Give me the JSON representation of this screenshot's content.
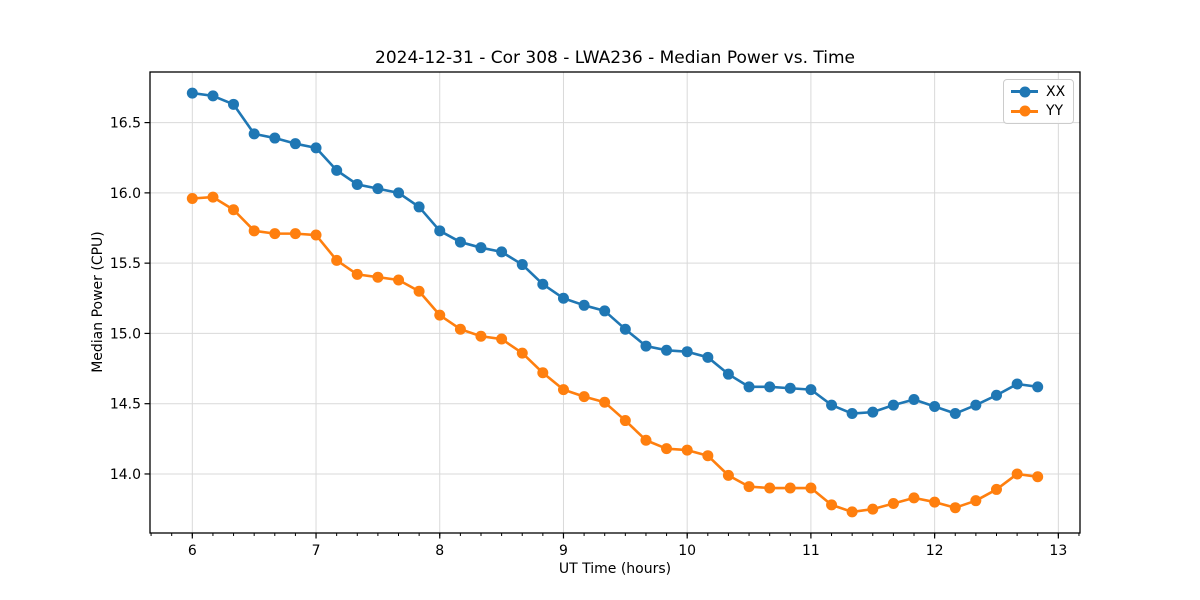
{
  "figure": {
    "background": "#ffffff"
  },
  "chart_data": {
    "type": "line",
    "title": "2024-12-31 - Cor 308 - LWA236 - Median Power vs. Time",
    "xlabel": "UT Time (hours)",
    "ylabel": "Median Power (CPU)",
    "xlim": [
      5.658,
      13.175
    ],
    "ylim": [
      13.58,
      16.86
    ],
    "x_ticks": [
      6,
      7,
      8,
      9,
      10,
      11,
      12,
      13
    ],
    "x_tick_labels": [
      "6",
      "7",
      "8",
      "9",
      "10",
      "11",
      "12",
      "13"
    ],
    "y_ticks": [
      14.0,
      14.5,
      15.0,
      15.5,
      16.0,
      16.5
    ],
    "y_tick_labels": [
      "14.0",
      "14.5",
      "15.0",
      "15.5",
      "16.0",
      "16.5"
    ],
    "x_minor_tick_step": 0.166667,
    "grid": true,
    "legend": {
      "position": "upper right"
    },
    "colors": {
      "grid": "#d9d9d9",
      "spine": "#000000",
      "text": "#000000"
    },
    "x": [
      6.0,
      6.167,
      6.333,
      6.5,
      6.667,
      6.833,
      7.0,
      7.167,
      7.333,
      7.5,
      7.667,
      7.833,
      8.0,
      8.167,
      8.333,
      8.5,
      8.667,
      8.833,
      9.0,
      9.167,
      9.333,
      9.5,
      9.667,
      9.833,
      10.0,
      10.167,
      10.333,
      10.5,
      10.667,
      10.833,
      11.0,
      11.167,
      11.333,
      11.5,
      11.667,
      11.833,
      12.0,
      12.167,
      12.333,
      12.5,
      12.667,
      12.833
    ],
    "series": [
      {
        "name": "XX",
        "color": "#1f77b4",
        "marker": "circle",
        "values": [
          16.71,
          16.69,
          16.63,
          16.42,
          16.39,
          16.35,
          16.32,
          16.16,
          16.06,
          16.03,
          16.0,
          15.9,
          15.73,
          15.65,
          15.61,
          15.58,
          15.49,
          15.35,
          15.25,
          15.2,
          15.16,
          15.03,
          14.91,
          14.88,
          14.87,
          14.83,
          14.71,
          14.62,
          14.62,
          14.61,
          14.6,
          14.49,
          14.43,
          14.44,
          14.49,
          14.53,
          14.48,
          14.43,
          14.49,
          14.56,
          14.64,
          14.62
        ]
      },
      {
        "name": "YY",
        "color": "#ff7f0e",
        "marker": "circle",
        "values": [
          15.96,
          15.97,
          15.88,
          15.73,
          15.71,
          15.71,
          15.7,
          15.52,
          15.42,
          15.4,
          15.38,
          15.3,
          15.13,
          15.03,
          14.98,
          14.96,
          14.86,
          14.72,
          14.6,
          14.55,
          14.51,
          14.38,
          14.24,
          14.18,
          14.17,
          14.13,
          13.99,
          13.91,
          13.9,
          13.9,
          13.9,
          13.78,
          13.73,
          13.75,
          13.79,
          13.83,
          13.8,
          13.76,
          13.81,
          13.89,
          14.0,
          13.98
        ]
      }
    ]
  }
}
